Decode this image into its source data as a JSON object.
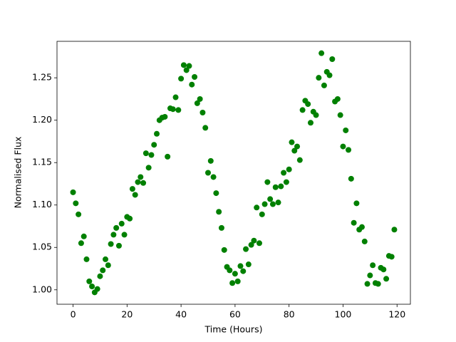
{
  "chart_data": {
    "type": "scatter",
    "xlabel": "Time (Hours)",
    "ylabel": "Normalised Flux",
    "color": "#008000",
    "xlim": [
      -5.95,
      124.95
    ],
    "ylim": [
      0.983,
      1.293
    ],
    "xticks": [
      0,
      20,
      40,
      60,
      80,
      100,
      120
    ],
    "yticks": [
      {
        "value": 1,
        "label": "1.00"
      },
      1.05,
      {
        "value": 1.1,
        "label": "1.10"
      },
      1.15,
      {
        "value": 1.2,
        "label": "1.20"
      },
      1.25
    ],
    "x": [
      0,
      1,
      2,
      3,
      4,
      5,
      6,
      7,
      8,
      9,
      10,
      11,
      12,
      13,
      14,
      15,
      16,
      17,
      18,
      19,
      20,
      21,
      22,
      23,
      24,
      25,
      26,
      27,
      28,
      29,
      30,
      31,
      32,
      33,
      34,
      35,
      36,
      37,
      38,
      39,
      40,
      41,
      42,
      43,
      44,
      45,
      46,
      47,
      48,
      49,
      50,
      51,
      52,
      53,
      54,
      55,
      56,
      57,
      58,
      59,
      60,
      61,
      62,
      63,
      64,
      65,
      66,
      67,
      68,
      69,
      70,
      71,
      72,
      73,
      74,
      75,
      76,
      77,
      78,
      79,
      80,
      81,
      82,
      83,
      84,
      85,
      86,
      87,
      88,
      89,
      90,
      91,
      92,
      93,
      94,
      95,
      96,
      97,
      98,
      99,
      100,
      101,
      102,
      103,
      104,
      105,
      106,
      107,
      108,
      109,
      110,
      111,
      112,
      113,
      114,
      115,
      116,
      117,
      118,
      119
    ],
    "values": [
      1.115,
      1.102,
      1.089,
      1.055,
      1.063,
      1.036,
      1.01,
      1.004,
      0.997,
      1.001,
      1.016,
      1.023,
      1.036,
      1.029,
      1.054,
      1.065,
      1.073,
      1.052,
      1.078,
      1.065,
      1.086,
      1.084,
      1.119,
      1.112,
      1.127,
      1.133,
      1.126,
      1.161,
      1.144,
      1.159,
      1.171,
      1.184,
      1.2,
      1.203,
      1.204,
      1.157,
      1.214,
      1.213,
      1.227,
      1.212,
      1.249,
      1.265,
      1.259,
      1.264,
      1.242,
      1.251,
      1.22,
      1.225,
      1.209,
      1.191,
      1.138,
      1.152,
      1.133,
      1.114,
      1.092,
      1.073,
      1.047,
      1.027,
      1.023,
      1.008,
      1.019,
      1.01,
      1.028,
      1.022,
      1.048,
      1.03,
      1.053,
      1.058,
      1.097,
      1.055,
      1.089,
      1.101,
      1.127,
      1.107,
      1.101,
      1.121,
      1.103,
      1.122,
      1.138,
      1.127,
      1.142,
      1.174,
      1.164,
      1.169,
      1.153,
      1.212,
      1.223,
      1.219,
      1.197,
      1.21,
      1.206,
      1.25,
      1.279,
      1.241,
      1.257,
      1.253,
      1.272,
      1.222,
      1.225,
      1.206,
      1.169,
      1.188,
      1.165,
      1.131,
      1.079,
      1.102,
      1.071,
      1.074,
      1.057,
      1.007,
      1.017,
      1.029,
      1.008,
      1.007,
      1.026,
      1.024,
      1.013,
      1.04,
      1.039,
      1.071
    ]
  }
}
